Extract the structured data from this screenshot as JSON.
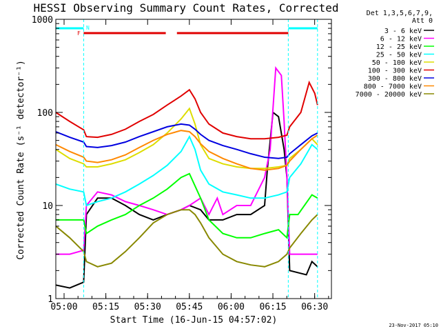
{
  "chart_data": {
    "type": "line",
    "title": "HESSI Observing Summary Count Rates, Corrected",
    "xlabel": "Start Time (16-Jun-15 04:57:02)",
    "ylabel": "Corrected Count Rate (s⁻¹ detector⁻¹)",
    "y_scale": "log",
    "ylim": [
      1,
      1000
    ],
    "xlim_minutes": [
      0,
      99
    ],
    "x_start_time": "04:57:02",
    "x_ticks": [
      "05:00",
      "05:15",
      "05:30",
      "05:45",
      "06:00",
      "06:15",
      "06:30"
    ],
    "x_tick_minutes": [
      2.97,
      17.97,
      32.97,
      47.97,
      62.97,
      77.97,
      92.97
    ],
    "y_ticks": [
      "1",
      "10",
      "100",
      "1000"
    ],
    "y_tick_values": [
      1,
      10,
      100,
      1000
    ],
    "legend_header": [
      "Det 1,3,5,6,7,9,",
      "Att 0"
    ],
    "legend_position": "right",
    "flags": {
      "F_label": "F",
      "N_label": "N",
      "night_intervals_minutes": [
        [
          0,
          10
        ],
        [
          83.5,
          94
        ]
      ],
      "flare_intervals_minutes": [
        [
          10,
          39.5
        ],
        [
          43.5,
          83.5
        ]
      ],
      "night_color": "#00ffff",
      "flare_color": "#e00000"
    },
    "series": [
      {
        "name": "3 - 6 keV",
        "color": "#000000",
        "points": [
          [
            0,
            1.4
          ],
          [
            5,
            1.3
          ],
          [
            10,
            1.5
          ],
          [
            11,
            8
          ],
          [
            15,
            12
          ],
          [
            20,
            12
          ],
          [
            25,
            10
          ],
          [
            30,
            8
          ],
          [
            35,
            7
          ],
          [
            40,
            8
          ],
          [
            45,
            9
          ],
          [
            48,
            10
          ],
          [
            52,
            9
          ],
          [
            55,
            7
          ],
          [
            60,
            7
          ],
          [
            65,
            8
          ],
          [
            70,
            8
          ],
          [
            75,
            10
          ],
          [
            76,
            25
          ],
          [
            78,
            100
          ],
          [
            80,
            90
          ],
          [
            82,
            40
          ],
          [
            83,
            20
          ],
          [
            84,
            2
          ],
          [
            90,
            1.8
          ],
          [
            92,
            2.5
          ],
          [
            94,
            2.2
          ]
        ]
      },
      {
        "name": "6 - 12 keV",
        "color": "#ff00ff",
        "points": [
          [
            0,
            3
          ],
          [
            5,
            3
          ],
          [
            10,
            3.3
          ],
          [
            11,
            10
          ],
          [
            15,
            14
          ],
          [
            20,
            13
          ],
          [
            25,
            11
          ],
          [
            30,
            10
          ],
          [
            35,
            9
          ],
          [
            40,
            8
          ],
          [
            45,
            9
          ],
          [
            48,
            10
          ],
          [
            52,
            12
          ],
          [
            55,
            8
          ],
          [
            58,
            12
          ],
          [
            60,
            8
          ],
          [
            65,
            10
          ],
          [
            70,
            10
          ],
          [
            75,
            20
          ],
          [
            77,
            40
          ],
          [
            79,
            300
          ],
          [
            81,
            250
          ],
          [
            82,
            80
          ],
          [
            83,
            20
          ],
          [
            84,
            3
          ],
          [
            90,
            3
          ],
          [
            94,
            3
          ]
        ]
      },
      {
        "name": "12 - 25 keV",
        "color": "#00ff00",
        "points": [
          [
            0,
            7
          ],
          [
            5,
            7
          ],
          [
            10,
            7
          ],
          [
            11,
            5
          ],
          [
            15,
            6
          ],
          [
            20,
            7
          ],
          [
            25,
            8
          ],
          [
            30,
            10
          ],
          [
            35,
            12
          ],
          [
            40,
            15
          ],
          [
            45,
            20
          ],
          [
            48,
            22
          ],
          [
            52,
            12
          ],
          [
            55,
            7
          ],
          [
            60,
            5
          ],
          [
            65,
            4.5
          ],
          [
            70,
            4.5
          ],
          [
            75,
            5
          ],
          [
            80,
            5.5
          ],
          [
            83,
            4.5
          ],
          [
            84,
            8
          ],
          [
            87,
            8
          ],
          [
            92,
            13
          ],
          [
            94,
            12
          ]
        ]
      },
      {
        "name": "25 - 50 keV",
        "color": "#00ffff",
        "points": [
          [
            0,
            17
          ],
          [
            5,
            15
          ],
          [
            10,
            14
          ],
          [
            11,
            10
          ],
          [
            15,
            11
          ],
          [
            20,
            12
          ],
          [
            25,
            14
          ],
          [
            30,
            17
          ],
          [
            35,
            21
          ],
          [
            40,
            27
          ],
          [
            45,
            38
          ],
          [
            48,
            55
          ],
          [
            50,
            40
          ],
          [
            52,
            24
          ],
          [
            55,
            17
          ],
          [
            60,
            14
          ],
          [
            65,
            13
          ],
          [
            70,
            12
          ],
          [
            75,
            12
          ],
          [
            80,
            13
          ],
          [
            83,
            14
          ],
          [
            84,
            20
          ],
          [
            88,
            28
          ],
          [
            92,
            45
          ],
          [
            94,
            40
          ]
        ]
      },
      {
        "name": "50 - 100 keV",
        "color": "#dddd00",
        "points": [
          [
            0,
            40
          ],
          [
            5,
            32
          ],
          [
            10,
            28
          ],
          [
            11,
            26
          ],
          [
            15,
            26
          ],
          [
            20,
            28
          ],
          [
            25,
            31
          ],
          [
            30,
            37
          ],
          [
            35,
            45
          ],
          [
            40,
            60
          ],
          [
            45,
            85
          ],
          [
            48,
            110
          ],
          [
            50,
            75
          ],
          [
            52,
            45
          ],
          [
            55,
            32
          ],
          [
            60,
            28
          ],
          [
            65,
            26
          ],
          [
            70,
            25
          ],
          [
            75,
            25
          ],
          [
            80,
            26
          ],
          [
            83,
            27
          ],
          [
            84,
            32
          ],
          [
            88,
            40
          ],
          [
            92,
            52
          ],
          [
            94,
            45
          ]
        ]
      },
      {
        "name": "100 - 300 keV",
        "color": "#e00000",
        "points": [
          [
            0,
            100
          ],
          [
            5,
            80
          ],
          [
            10,
            65
          ],
          [
            11,
            55
          ],
          [
            15,
            54
          ],
          [
            20,
            58
          ],
          [
            25,
            66
          ],
          [
            30,
            80
          ],
          [
            35,
            95
          ],
          [
            40,
            120
          ],
          [
            45,
            150
          ],
          [
            48,
            175
          ],
          [
            50,
            140
          ],
          [
            52,
            100
          ],
          [
            55,
            75
          ],
          [
            60,
            60
          ],
          [
            65,
            55
          ],
          [
            70,
            52
          ],
          [
            75,
            52
          ],
          [
            80,
            54
          ],
          [
            83,
            57
          ],
          [
            84,
            70
          ],
          [
            88,
            100
          ],
          [
            91,
            210
          ],
          [
            93,
            160
          ],
          [
            94,
            120
          ]
        ]
      },
      {
        "name": "300 - 800 keV",
        "color": "#0000e0",
        "points": [
          [
            0,
            62
          ],
          [
            5,
            54
          ],
          [
            10,
            48
          ],
          [
            11,
            43
          ],
          [
            15,
            42
          ],
          [
            20,
            44
          ],
          [
            25,
            48
          ],
          [
            30,
            55
          ],
          [
            35,
            62
          ],
          [
            40,
            70
          ],
          [
            45,
            75
          ],
          [
            48,
            73
          ],
          [
            50,
            66
          ],
          [
            52,
            58
          ],
          [
            55,
            50
          ],
          [
            60,
            44
          ],
          [
            65,
            40
          ],
          [
            70,
            36
          ],
          [
            75,
            33
          ],
          [
            80,
            32
          ],
          [
            83,
            33
          ],
          [
            84,
            36
          ],
          [
            88,
            45
          ],
          [
            92,
            56
          ],
          [
            94,
            60
          ]
        ]
      },
      {
        "name": "800 - 7000 keV",
        "color": "#ff8800",
        "points": [
          [
            0,
            45
          ],
          [
            5,
            38
          ],
          [
            10,
            33
          ],
          [
            11,
            30
          ],
          [
            15,
            29
          ],
          [
            20,
            31
          ],
          [
            25,
            35
          ],
          [
            30,
            42
          ],
          [
            35,
            50
          ],
          [
            40,
            58
          ],
          [
            45,
            64
          ],
          [
            48,
            62
          ],
          [
            50,
            55
          ],
          [
            52,
            46
          ],
          [
            55,
            38
          ],
          [
            60,
            32
          ],
          [
            65,
            28
          ],
          [
            70,
            25
          ],
          [
            75,
            24
          ],
          [
            80,
            25
          ],
          [
            83,
            27
          ],
          [
            84,
            30
          ],
          [
            88,
            40
          ],
          [
            92,
            52
          ],
          [
            94,
            57
          ]
        ]
      },
      {
        "name": "7000 - 20000 keV",
        "color": "#888800",
        "points": [
          [
            0,
            6
          ],
          [
            5,
            4.5
          ],
          [
            10,
            3.2
          ],
          [
            11,
            2.5
          ],
          [
            15,
            2.2
          ],
          [
            20,
            2.4
          ],
          [
            25,
            3.2
          ],
          [
            30,
            4.5
          ],
          [
            35,
            6.5
          ],
          [
            40,
            8
          ],
          [
            45,
            9
          ],
          [
            48,
            9
          ],
          [
            50,
            8
          ],
          [
            52,
            6.5
          ],
          [
            55,
            4.5
          ],
          [
            60,
            3
          ],
          [
            65,
            2.5
          ],
          [
            70,
            2.3
          ],
          [
            75,
            2.2
          ],
          [
            80,
            2.5
          ],
          [
            83,
            3
          ],
          [
            84,
            3.5
          ],
          [
            88,
            5
          ],
          [
            92,
            7
          ],
          [
            94,
            8
          ]
        ]
      }
    ]
  },
  "footer": {
    "date_stamp": "23-Nov-2017 05:10"
  }
}
